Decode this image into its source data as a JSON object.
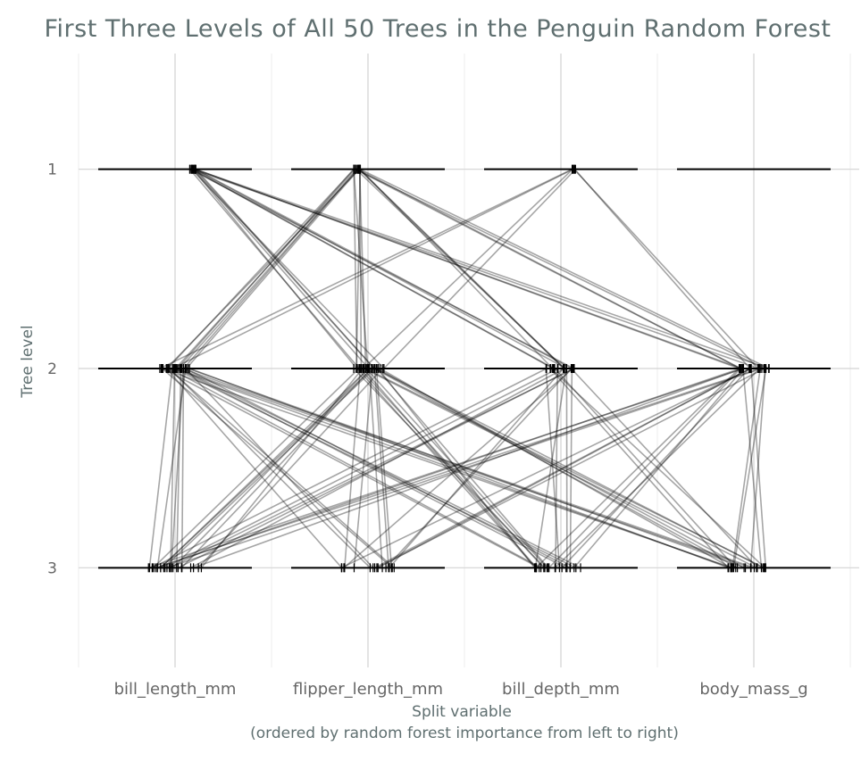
{
  "chart_data": {
    "type": "line",
    "title": "First Three Levels of All 50 Trees in the Penguin Random Forest",
    "xlabel": "Split variable",
    "xlabel_note": "(ordered by random forest importance from left to right)",
    "ylabel": "Tree level",
    "categories": [
      "bill_length_mm",
      "flipper_length_mm",
      "bill_depth_mm",
      "body_mass_g"
    ],
    "levels": [
      1,
      2,
      3
    ],
    "y_reversed": true,
    "grid": true,
    "series_color": "#000000",
    "segment_opacity": 0.35,
    "links": [
      {
        "from": {
          "var": "bill_length_mm",
          "level": 1
        },
        "to": {
          "var": "flipper_length_mm",
          "level": 2
        },
        "count": 6
      },
      {
        "from": {
          "var": "bill_length_mm",
          "level": 1
        },
        "to": {
          "var": "bill_depth_mm",
          "level": 2
        },
        "count": 5
      },
      {
        "from": {
          "var": "bill_length_mm",
          "level": 1
        },
        "to": {
          "var": "body_mass_g",
          "level": 2
        },
        "count": 4
      },
      {
        "from": {
          "var": "flipper_length_mm",
          "level": 1
        },
        "to": {
          "var": "bill_length_mm",
          "level": 2
        },
        "count": 7
      },
      {
        "from": {
          "var": "flipper_length_mm",
          "level": 1
        },
        "to": {
          "var": "flipper_length_mm",
          "level": 2
        },
        "count": 5
      },
      {
        "from": {
          "var": "flipper_length_mm",
          "level": 1
        },
        "to": {
          "var": "bill_depth_mm",
          "level": 2
        },
        "count": 4
      },
      {
        "from": {
          "var": "flipper_length_mm",
          "level": 1
        },
        "to": {
          "var": "body_mass_g",
          "level": 2
        },
        "count": 4
      },
      {
        "from": {
          "var": "bill_depth_mm",
          "level": 1
        },
        "to": {
          "var": "bill_length_mm",
          "level": 2
        },
        "count": 2
      },
      {
        "from": {
          "var": "bill_depth_mm",
          "level": 1
        },
        "to": {
          "var": "flipper_length_mm",
          "level": 2
        },
        "count": 2
      },
      {
        "from": {
          "var": "bill_depth_mm",
          "level": 1
        },
        "to": {
          "var": "body_mass_g",
          "level": 2
        },
        "count": 2
      },
      {
        "from": {
          "var": "bill_length_mm",
          "level": 2
        },
        "to": {
          "var": "bill_length_mm",
          "level": 3
        },
        "count": 6
      },
      {
        "from": {
          "var": "bill_length_mm",
          "level": 2
        },
        "to": {
          "var": "flipper_length_mm",
          "level": 3
        },
        "count": 5
      },
      {
        "from": {
          "var": "bill_length_mm",
          "level": 2
        },
        "to": {
          "var": "bill_depth_mm",
          "level": 3
        },
        "count": 6
      },
      {
        "from": {
          "var": "bill_length_mm",
          "level": 2
        },
        "to": {
          "var": "body_mass_g",
          "level": 3
        },
        "count": 6
      },
      {
        "from": {
          "var": "flipper_length_mm",
          "level": 2
        },
        "to": {
          "var": "bill_length_mm",
          "level": 3
        },
        "count": 8
      },
      {
        "from": {
          "var": "flipper_length_mm",
          "level": 2
        },
        "to": {
          "var": "flipper_length_mm",
          "level": 3
        },
        "count": 5
      },
      {
        "from": {
          "var": "flipper_length_mm",
          "level": 2
        },
        "to": {
          "var": "bill_depth_mm",
          "level": 3
        },
        "count": 7
      },
      {
        "from": {
          "var": "flipper_length_mm",
          "level": 2
        },
        "to": {
          "var": "body_mass_g",
          "level": 3
        },
        "count": 6
      },
      {
        "from": {
          "var": "bill_depth_mm",
          "level": 2
        },
        "to": {
          "var": "bill_length_mm",
          "level": 3
        },
        "count": 5
      },
      {
        "from": {
          "var": "bill_depth_mm",
          "level": 2
        },
        "to": {
          "var": "flipper_length_mm",
          "level": 3
        },
        "count": 3
      },
      {
        "from": {
          "var": "bill_depth_mm",
          "level": 2
        },
        "to": {
          "var": "bill_depth_mm",
          "level": 3
        },
        "count": 5
      },
      {
        "from": {
          "var": "bill_depth_mm",
          "level": 2
        },
        "to": {
          "var": "body_mass_g",
          "level": 3
        },
        "count": 4
      },
      {
        "from": {
          "var": "body_mass_g",
          "level": 2
        },
        "to": {
          "var": "bill_length_mm",
          "level": 3
        },
        "count": 5
      },
      {
        "from": {
          "var": "body_mass_g",
          "level": 2
        },
        "to": {
          "var": "flipper_length_mm",
          "level": 3
        },
        "count": 4
      },
      {
        "from": {
          "var": "body_mass_g",
          "level": 2
        },
        "to": {
          "var": "bill_depth_mm",
          "level": 3
        },
        "count": 5
      },
      {
        "from": {
          "var": "body_mass_g",
          "level": 2
        },
        "to": {
          "var": "body_mass_g",
          "level": 3
        },
        "count": 5
      }
    ]
  }
}
